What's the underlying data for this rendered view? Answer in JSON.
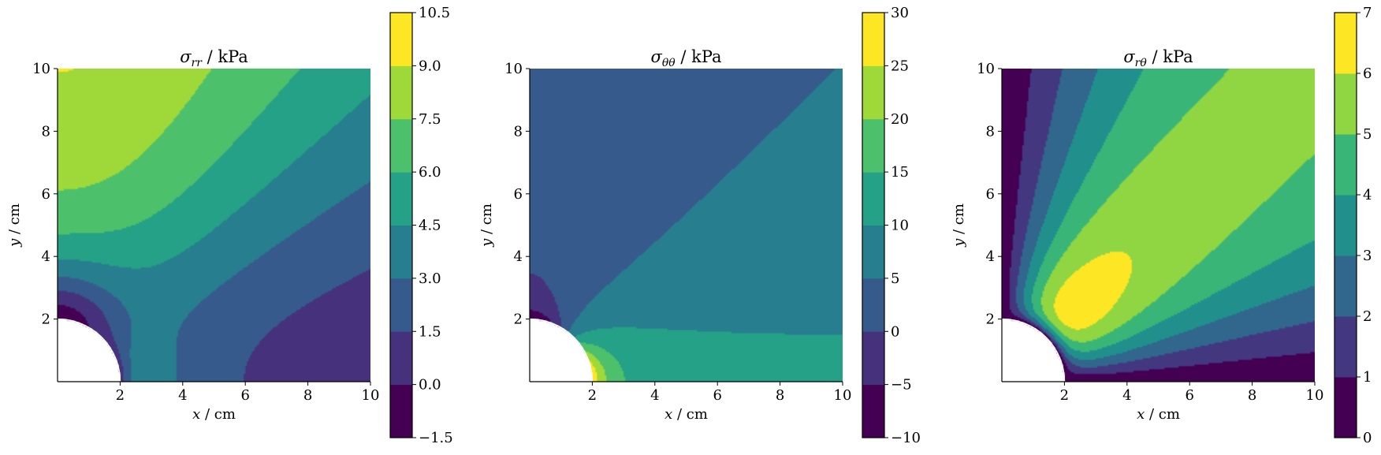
{
  "chart_data": [
    {
      "type": "heatmap",
      "subtype": "filled-contour",
      "title": "σ_rr / kPa",
      "title_symbol": "σ",
      "title_subscript": "rr",
      "title_unit": "/ kPa",
      "xlabel_symbol": "x",
      "xlabel_unit": "/ cm",
      "ylabel_symbol": "y",
      "ylabel_unit": "/ cm",
      "xlim": [
        0,
        10
      ],
      "ylim": [
        0,
        10
      ],
      "x_ticks": [
        "2",
        "4",
        "6",
        "8",
        "10"
      ],
      "y_ticks": [
        "2",
        "4",
        "6",
        "8",
        "10"
      ],
      "hole_radius": 2,
      "colorbar_levels": [
        -1.5,
        0.0,
        1.5,
        3.0,
        4.5,
        6.0,
        7.5,
        9.0,
        10.5
      ],
      "colorbar_ticks": [
        "−1.5",
        "0.0",
        "1.5",
        "3.0",
        "4.5",
        "6.0",
        "7.5",
        "9.0",
        "10.5"
      ],
      "field": "sigma_rr",
      "colormap": "viridis"
    },
    {
      "type": "heatmap",
      "subtype": "filled-contour",
      "title": "σ_θθ / kPa",
      "title_symbol": "σ",
      "title_subscript": "θθ",
      "title_unit": "/ kPa",
      "xlabel_symbol": "x",
      "xlabel_unit": "/ cm",
      "ylabel_symbol": "y",
      "ylabel_unit": "/ cm",
      "xlim": [
        0,
        10
      ],
      "ylim": [
        0,
        10
      ],
      "x_ticks": [
        "2",
        "4",
        "6",
        "8",
        "10"
      ],
      "y_ticks": [
        "2",
        "4",
        "6",
        "8",
        "10"
      ],
      "hole_radius": 2,
      "colorbar_levels": [
        -10,
        -5,
        0,
        5,
        10,
        15,
        20,
        25,
        30
      ],
      "colorbar_ticks": [
        "−10",
        "−5",
        "0",
        "5",
        "10",
        "15",
        "20",
        "25",
        "30"
      ],
      "field": "sigma_tt",
      "colormap": "viridis"
    },
    {
      "type": "heatmap",
      "subtype": "filled-contour",
      "title": "σ_rθ / kPa",
      "title_symbol": "σ",
      "title_subscript": "rθ",
      "title_unit": "/ kPa",
      "xlabel_symbol": "x",
      "xlabel_unit": "/ cm",
      "ylabel_symbol": "y",
      "ylabel_unit": "/ cm",
      "xlim": [
        0,
        10
      ],
      "ylim": [
        0,
        10
      ],
      "x_ticks": [
        "2",
        "4",
        "6",
        "8",
        "10"
      ],
      "y_ticks": [
        "2",
        "4",
        "6",
        "8",
        "10"
      ],
      "hole_radius": 2,
      "colorbar_levels": [
        0,
        1,
        2,
        3,
        4,
        5,
        6,
        7
      ],
      "colorbar_ticks": [
        "0",
        "1",
        "2",
        "3",
        "4",
        "5",
        "6",
        "7"
      ],
      "field": "sigma_rt",
      "colormap": "viridis"
    }
  ]
}
